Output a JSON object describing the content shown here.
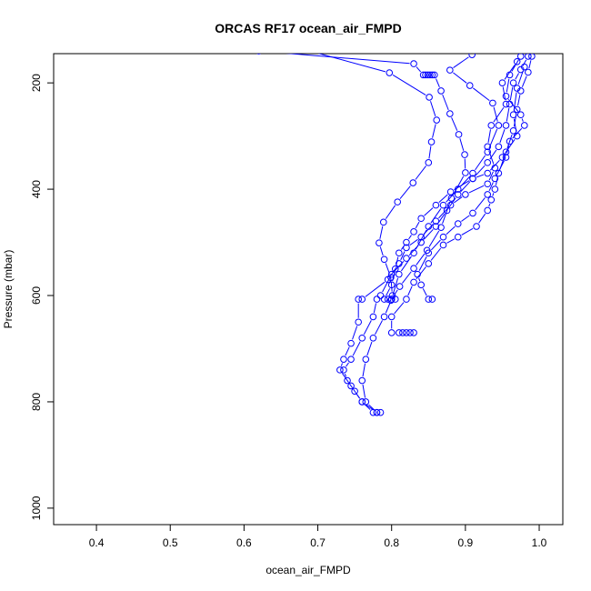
{
  "chart_data": {
    "type": "line",
    "title": "ORCAS RF17 ocean_air_FMPD",
    "xlabel": "ocean_air_FMPD",
    "ylabel": "Pressure (mbar)",
    "xlim": [
      0.342,
      1.032
    ],
    "ylim": [
      1031,
      145
    ],
    "y_reversed": true,
    "x_ticks": [
      0.4,
      0.5,
      0.6,
      0.7,
      0.8,
      0.9,
      1.0
    ],
    "x_tick_labels": [
      "0.4",
      "0.5",
      "0.6",
      "0.7",
      "0.8",
      "0.9",
      "1.0"
    ],
    "y_ticks": [
      200,
      400,
      600,
      800,
      1000
    ],
    "y_tick_labels": [
      "200",
      "400",
      "600",
      "800",
      "1000"
    ],
    "grid": false,
    "marker": "open-circle",
    "line_style": "both",
    "color": "#0000ff",
    "series": [
      {
        "points": [
          [
            0.639,
            121
          ],
          [
            0.797,
            181
          ],
          [
            0.851,
            227
          ],
          [
            0.861,
            270
          ],
          [
            0.854,
            311
          ],
          [
            0.85,
            350
          ],
          [
            0.829,
            388
          ],
          [
            0.808,
            424
          ],
          [
            0.789,
            462
          ],
          [
            0.783,
            501
          ],
          [
            0.79,
            532
          ],
          [
            0.799,
            566
          ],
          [
            0.801,
            600
          ]
        ]
      },
      {
        "points": [
          [
            0.62,
            140
          ],
          [
            0.83,
            164
          ],
          [
            0.843,
            185
          ],
          [
            0.846,
            185
          ],
          [
            0.849,
            185
          ],
          [
            0.852,
            185
          ],
          [
            0.855,
            185
          ],
          [
            0.858,
            185
          ],
          [
            0.867,
            215
          ],
          [
            0.879,
            258
          ],
          [
            0.891,
            297
          ],
          [
            0.899,
            335
          ],
          [
            0.9,
            369
          ],
          [
            0.881,
            417
          ],
          [
            0.867,
            472
          ],
          [
            0.848,
            515
          ],
          [
            0.83,
            549
          ],
          [
            0.811,
            583
          ],
          [
            0.799,
            609
          ]
        ]
      },
      {
        "points": [
          [
            0.909,
            147
          ],
          [
            0.879,
            176
          ],
          [
            0.906,
            205
          ],
          [
            0.937,
            238
          ],
          [
            0.945,
            280
          ],
          [
            0.93,
            330
          ],
          [
            0.91,
            370
          ],
          [
            0.89,
            400
          ],
          [
            0.87,
            430
          ],
          [
            0.85,
            470
          ],
          [
            0.83,
            520
          ],
          [
            0.81,
            560
          ],
          [
            0.8,
            607
          ],
          [
            0.79,
            640
          ],
          [
            0.775,
            680
          ],
          [
            0.765,
            720
          ],
          [
            0.76,
            760
          ],
          [
            0.765,
            800
          ],
          [
            0.78,
            820
          ]
        ]
      },
      {
        "points": [
          [
            0.985,
            150
          ],
          [
            0.975,
            175
          ],
          [
            0.965,
            200
          ],
          [
            0.96,
            240
          ],
          [
            0.955,
            280
          ],
          [
            0.945,
            320
          ],
          [
            0.93,
            350
          ],
          [
            0.91,
            380
          ],
          [
            0.89,
            410
          ],
          [
            0.875,
            440
          ],
          [
            0.86,
            470
          ],
          [
            0.84,
            500
          ],
          [
            0.82,
            530
          ],
          [
            0.8,
            560
          ],
          [
            0.785,
            600
          ],
          [
            0.78,
            607
          ],
          [
            0.775,
            640
          ],
          [
            0.76,
            680
          ],
          [
            0.745,
            720
          ],
          [
            0.735,
            740
          ],
          [
            0.74,
            760
          ],
          [
            0.75,
            780
          ],
          [
            0.76,
            800
          ],
          [
            0.775,
            820
          ],
          [
            0.785,
            820
          ]
        ]
      },
      {
        "points": [
          [
            0.99,
            150
          ],
          [
            0.985,
            180
          ],
          [
            0.975,
            215
          ],
          [
            0.97,
            250
          ],
          [
            0.965,
            290
          ],
          [
            0.955,
            330
          ],
          [
            0.945,
            370
          ],
          [
            0.94,
            400
          ],
          [
            0.935,
            420
          ],
          [
            0.93,
            440
          ],
          [
            0.915,
            470
          ],
          [
            0.89,
            490
          ],
          [
            0.87,
            505
          ],
          [
            0.85,
            540
          ],
          [
            0.83,
            575
          ],
          [
            0.82,
            607
          ],
          [
            0.8,
            640
          ],
          [
            0.8,
            670
          ],
          [
            0.81,
            670
          ],
          [
            0.815,
            670
          ],
          [
            0.82,
            670
          ],
          [
            0.825,
            670
          ],
          [
            0.83,
            670
          ]
        ]
      },
      {
        "points": [
          [
            0.975,
            150
          ],
          [
            0.96,
            185
          ],
          [
            0.955,
            225
          ],
          [
            0.975,
            260
          ],
          [
            0.98,
            280
          ],
          [
            0.96,
            310
          ],
          [
            0.955,
            340
          ],
          [
            0.94,
            380
          ],
          [
            0.93,
            410
          ],
          [
            0.91,
            445
          ],
          [
            0.89,
            465
          ],
          [
            0.87,
            490
          ],
          [
            0.85,
            520
          ],
          [
            0.835,
            560
          ],
          [
            0.84,
            580
          ],
          [
            0.85,
            607
          ],
          [
            0.855,
            607
          ]
        ]
      },
      {
        "points": [
          [
            0.97,
            160
          ],
          [
            0.95,
            200
          ],
          [
            0.955,
            240
          ],
          [
            0.935,
            280
          ],
          [
            0.93,
            320
          ],
          [
            0.94,
            360
          ],
          [
            0.93,
            390
          ],
          [
            0.9,
            410
          ],
          [
            0.88,
            430
          ],
          [
            0.86,
            460
          ],
          [
            0.84,
            490
          ],
          [
            0.82,
            510
          ],
          [
            0.81,
            540
          ],
          [
            0.795,
            570
          ],
          [
            0.76,
            607
          ],
          [
            0.755,
            607
          ],
          [
            0.755,
            650
          ],
          [
            0.745,
            690
          ],
          [
            0.735,
            720
          ],
          [
            0.73,
            740
          ],
          [
            0.745,
            770
          ],
          [
            0.76,
            800
          ],
          [
            0.78,
            820
          ]
        ]
      },
      {
        "points": [
          [
            0.98,
            170
          ],
          [
            0.97,
            210
          ],
          [
            0.965,
            260
          ],
          [
            0.97,
            300
          ],
          [
            0.95,
            340
          ],
          [
            0.93,
            370
          ],
          [
            0.91,
            380
          ],
          [
            0.88,
            405
          ],
          [
            0.86,
            430
          ],
          [
            0.84,
            455
          ],
          [
            0.83,
            480
          ],
          [
            0.82,
            500
          ],
          [
            0.81,
            520
          ],
          [
            0.805,
            550
          ],
          [
            0.8,
            580
          ],
          [
            0.79,
            607
          ],
          [
            0.795,
            607
          ],
          [
            0.8,
            607
          ],
          [
            0.805,
            607
          ]
        ]
      }
    ]
  }
}
